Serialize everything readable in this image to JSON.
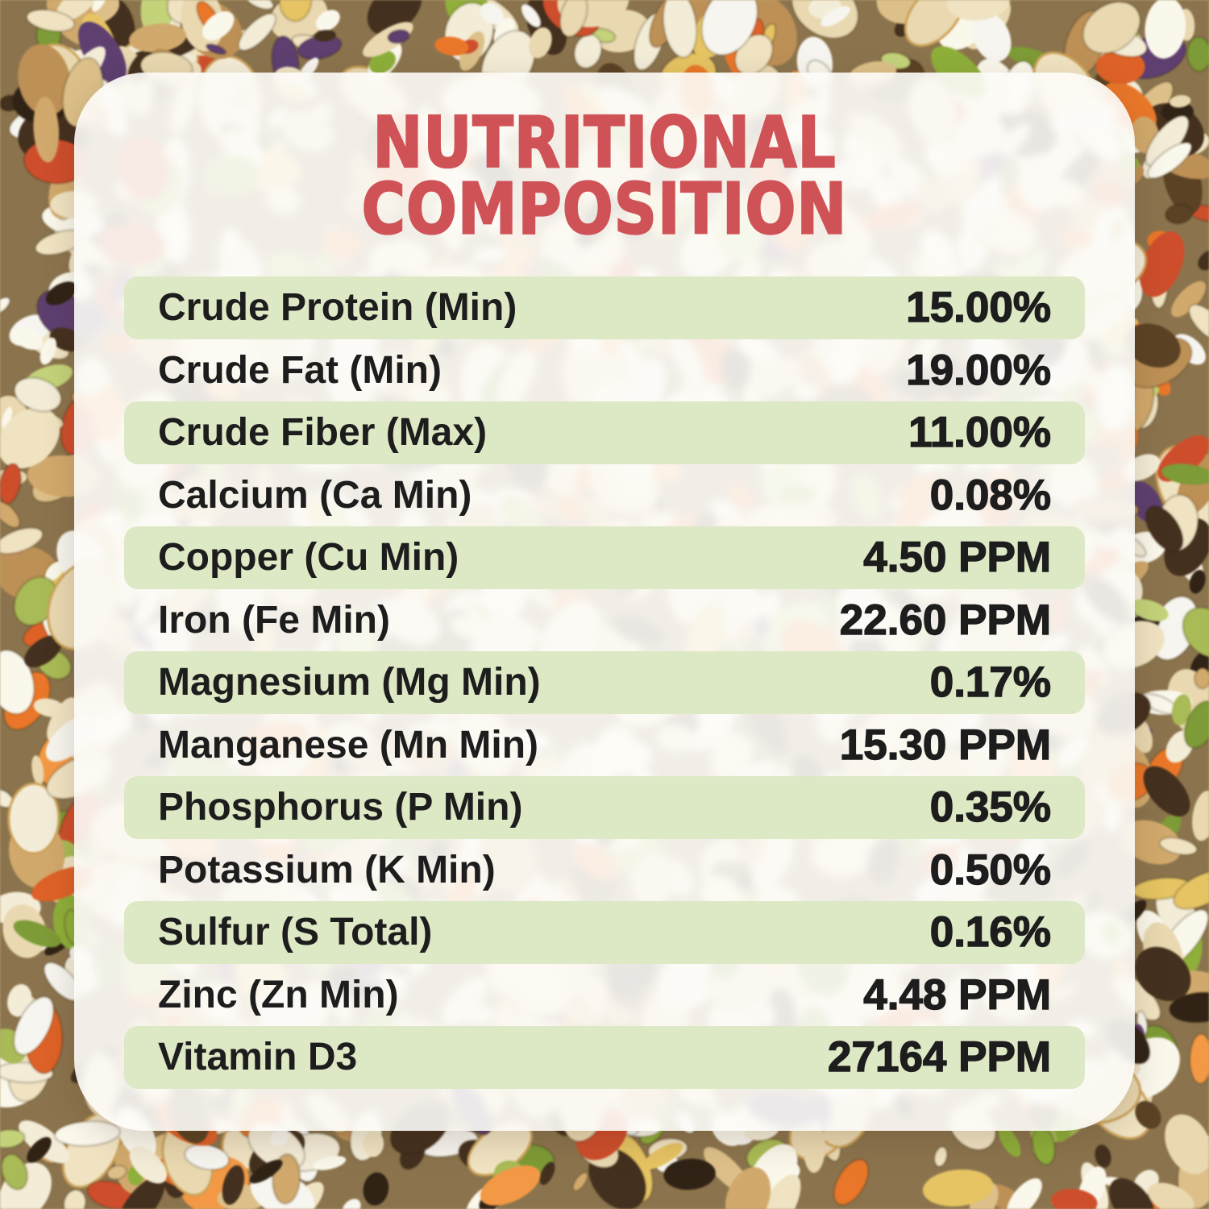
{
  "title": {
    "line1": "NUTRITIONAL",
    "line2": "COMPOSITION"
  },
  "table": {
    "rows": [
      {
        "label": "Crude Protein (Min)",
        "value": "15.00%"
      },
      {
        "label": "Crude Fat (Min)",
        "value": "19.00%"
      },
      {
        "label": "Crude Fiber (Max)",
        "value": "11.00%"
      },
      {
        "label": "Calcium (Ca Min)",
        "value": "0.08%"
      },
      {
        "label": "Copper (Cu Min)",
        "value": "4.50 PPM"
      },
      {
        "label": "Iron (Fe Min)",
        "value": "22.60 PPM"
      },
      {
        "label": "Magnesium (Mg Min)",
        "value": "0.17%"
      },
      {
        "label": "Manganese (Mn Min)",
        "value": "15.30 PPM"
      },
      {
        "label": "Phosphorus (P Min)",
        "value": "0.35%"
      },
      {
        "label": "Potassium (K Min)",
        "value": "0.50%"
      },
      {
        "label": "Sulfur (S Total)",
        "value": "0.16%"
      },
      {
        "label": "Zinc (Zn Min)",
        "value": "4.48 PPM"
      },
      {
        "label": "Vitamin D3",
        "value": "27164 PPM"
      }
    ]
  },
  "colors": {
    "title_red": "#cf5257",
    "row_green": "#dde8c5",
    "text_dark": "#1d1d1d"
  }
}
